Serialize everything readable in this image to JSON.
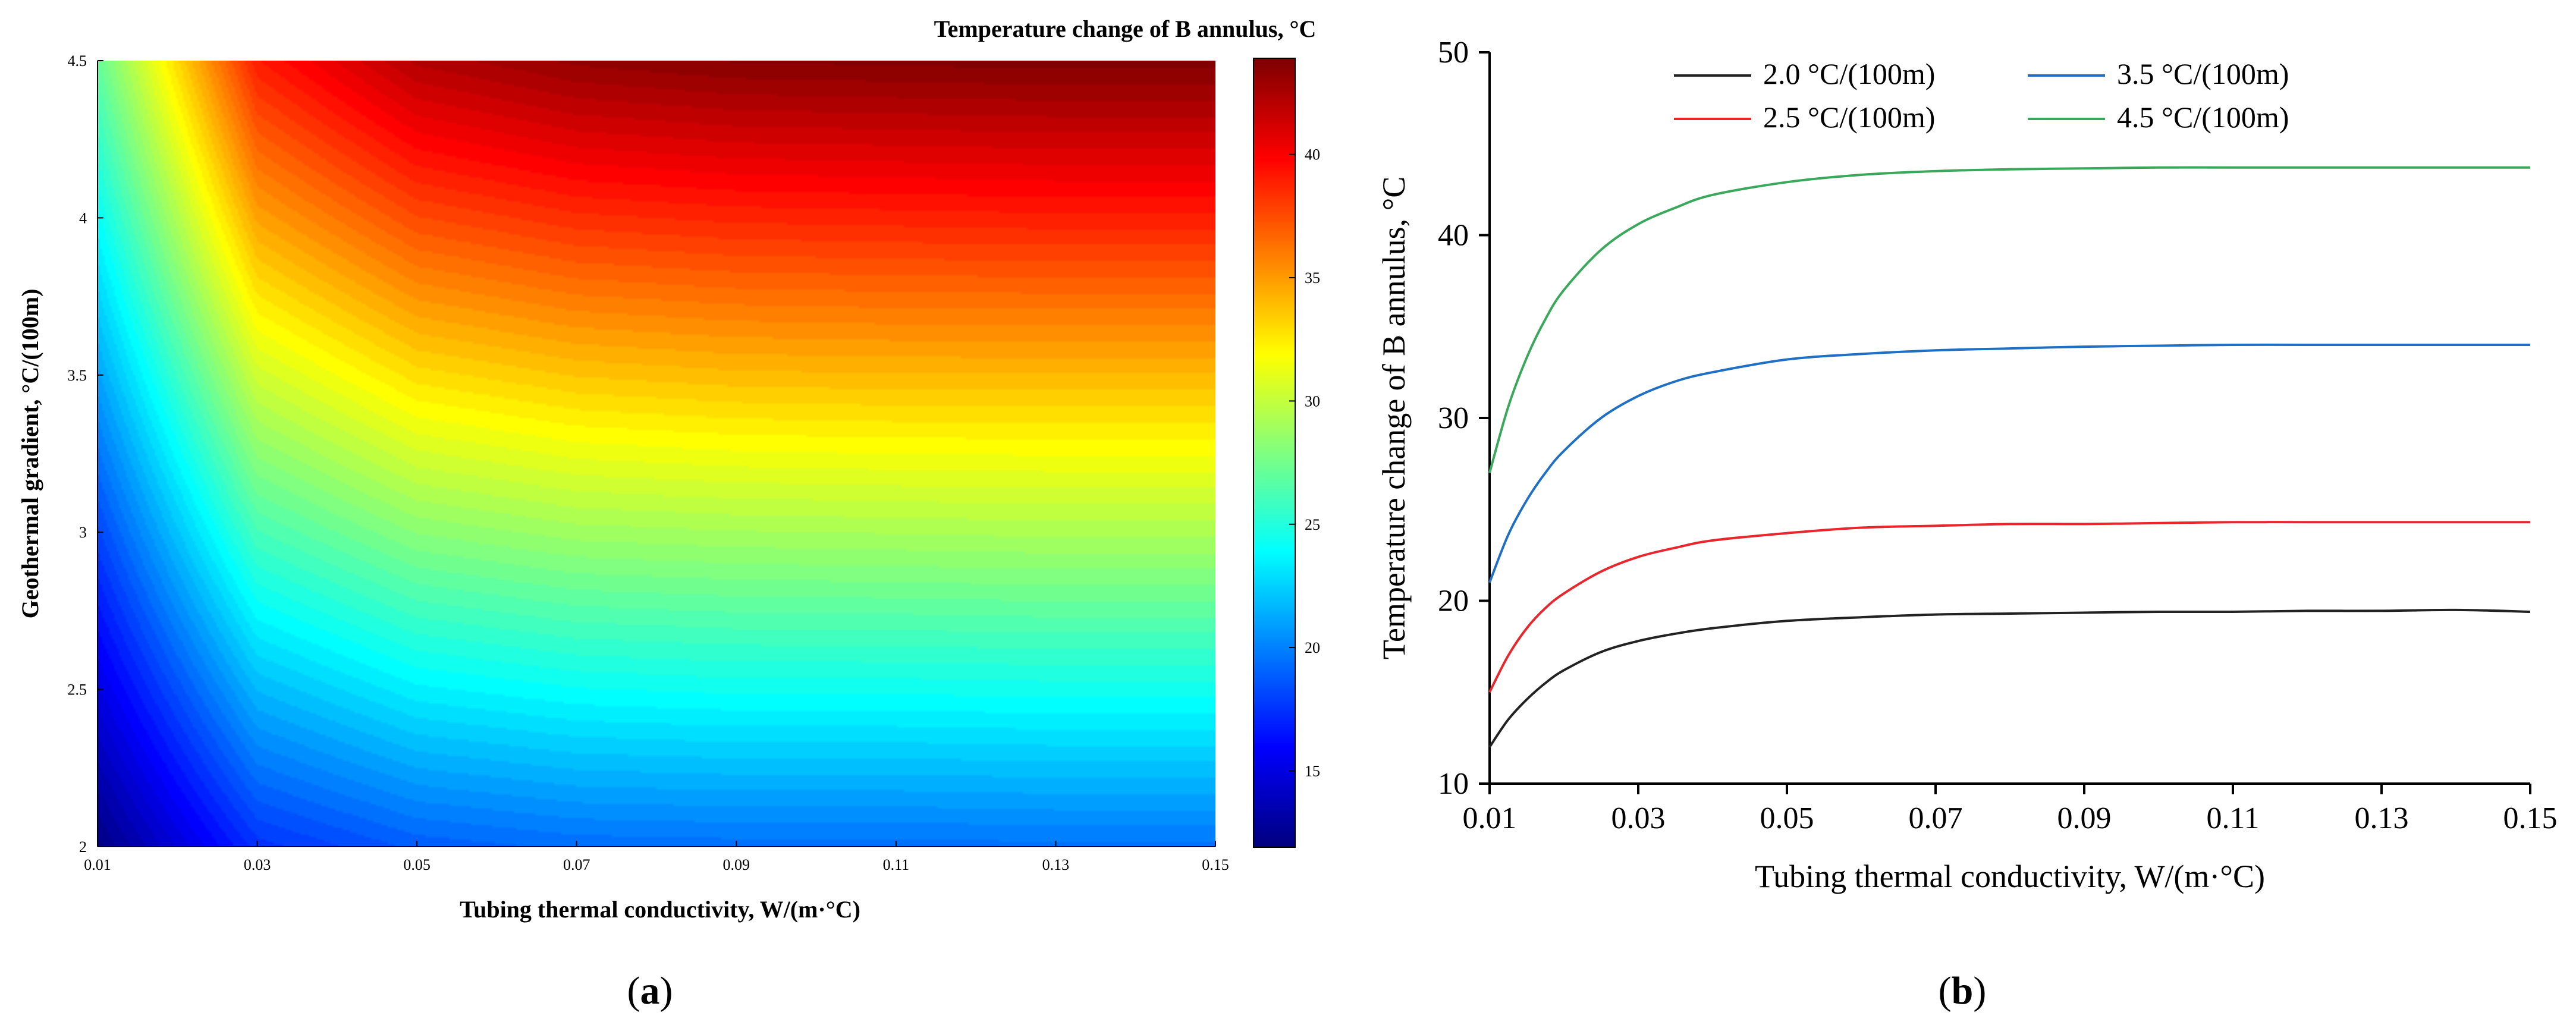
{
  "panels": [
    {
      "label": "a"
    },
    {
      "label": "b"
    }
  ],
  "chart_data": [
    {
      "type": "heatmap",
      "panel": "a",
      "title": "Temperature change of B annulus, °C",
      "xlabel": "Tubing thermal conductivity, W/(m·°C)",
      "ylabel": "Geothermal gradient, °C/(100m)",
      "xlim": [
        0.01,
        0.15
      ],
      "ylim": [
        2,
        4.5
      ],
      "x_ticks": [
        "0.01",
        "0.03",
        "0.05",
        "0.07",
        "0.09",
        "0.11",
        "0.13",
        "0.15"
      ],
      "y_ticks": [
        "2",
        "2.5",
        "3",
        "3.5",
        "4",
        "4.5"
      ],
      "colorbar": {
        "range": [
          11.9,
          43.9
        ],
        "ticks": [
          "15",
          "20",
          "25",
          "30",
          "35",
          "40"
        ],
        "colormap": "jet"
      },
      "grid": false,
      "x": [
        0.01,
        0.03,
        0.05,
        0.07,
        0.09,
        0.11,
        0.13,
        0.15
      ],
      "y": [
        2.0,
        2.5,
        3.0,
        3.5,
        4.0,
        4.5
      ],
      "z": [
        [
          12.0,
          17.4,
          18.8,
          19.3,
          19.4,
          19.4,
          19.5,
          19.5
        ],
        [
          15.0,
          21.7,
          23.5,
          24.1,
          24.3,
          24.3,
          24.4,
          24.4
        ],
        [
          18.0,
          26.1,
          28.2,
          28.9,
          29.1,
          29.2,
          29.3,
          29.3
        ],
        [
          21.0,
          30.4,
          32.9,
          33.7,
          34.0,
          34.1,
          34.1,
          34.1
        ],
        [
          24.0,
          34.8,
          37.6,
          38.5,
          38.8,
          38.9,
          39.0,
          39.0
        ],
        [
          27.0,
          39.1,
          42.3,
          43.3,
          43.7,
          43.8,
          43.9,
          43.9
        ]
      ]
    },
    {
      "type": "line",
      "panel": "b",
      "xlabel": "Tubing thermal conductivity, W/(m·°C)",
      "ylabel": "Temperature change of B annulus, °C",
      "xlim": [
        0.01,
        0.15
      ],
      "ylim": [
        10,
        50
      ],
      "x_ticks": [
        "0.01",
        "0.03",
        "0.05",
        "0.07",
        "0.09",
        "0.11",
        "0.13",
        "0.15"
      ],
      "y_ticks": [
        "10",
        "20",
        "30",
        "40",
        "50"
      ],
      "grid": false,
      "legend_position": "top",
      "x": [
        0.01,
        0.0125,
        0.015,
        0.0175,
        0.02,
        0.025,
        0.03,
        0.035,
        0.04,
        0.05,
        0.06,
        0.07,
        0.08,
        0.09,
        0.1,
        0.11,
        0.12,
        0.13,
        0.14,
        0.15
      ],
      "series": [
        {
          "name": "2.0 °C/(100m)",
          "color": "#222222",
          "values": [
            12.0,
            13.5,
            14.6,
            15.5,
            16.2,
            17.2,
            17.8,
            18.2,
            18.5,
            18.9,
            19.1,
            19.25,
            19.3,
            19.35,
            19.4,
            19.4,
            19.45,
            19.45,
            19.5,
            19.4
          ]
        },
        {
          "name": "2.5 °C/(100m)",
          "color": "#e8262b",
          "values": [
            15.0,
            17.0,
            18.5,
            19.6,
            20.4,
            21.6,
            22.4,
            22.9,
            23.3,
            23.7,
            24.0,
            24.1,
            24.2,
            24.2,
            24.25,
            24.3,
            24.3,
            24.3,
            24.3,
            24.3
          ]
        },
        {
          "name": "3.5 °C/(100m)",
          "color": "#1f6fc5",
          "values": [
            21.0,
            23.6,
            25.5,
            27.0,
            28.2,
            30.0,
            31.2,
            32.0,
            32.5,
            33.2,
            33.5,
            33.7,
            33.8,
            33.9,
            33.95,
            34.0,
            34.0,
            34.0,
            34.0,
            34.0
          ]
        },
        {
          "name": "4.5 °C/(100m)",
          "color": "#3aa85a",
          "values": [
            27.0,
            30.6,
            33.3,
            35.4,
            37.0,
            39.2,
            40.6,
            41.5,
            42.2,
            42.9,
            43.3,
            43.5,
            43.6,
            43.65,
            43.7,
            43.7,
            43.7,
            43.7,
            43.7,
            43.7
          ]
        }
      ]
    }
  ]
}
